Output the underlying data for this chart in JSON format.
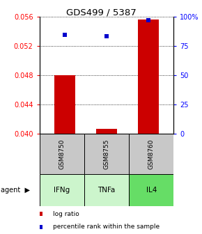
{
  "title": "GDS499 / 5387",
  "samples": [
    "GSM8750",
    "GSM8755",
    "GSM8760"
  ],
  "agents": [
    "IFNg",
    "TNFa",
    "IL4"
  ],
  "log_ratio": [
    0.048,
    0.04065,
    0.05555
  ],
  "percentile": [
    84.0,
    83.0,
    97.0
  ],
  "ylim_left": [
    0.04,
    0.056
  ],
  "ylim_right": [
    0,
    100
  ],
  "yticks_left": [
    0.04,
    0.044,
    0.048,
    0.052,
    0.056
  ],
  "yticks_right": [
    0,
    25,
    50,
    75,
    100
  ],
  "ytick_labels_right": [
    "0",
    "25",
    "50",
    "75",
    "100%"
  ],
  "bar_color": "#cc0000",
  "dot_color": "#0000cc",
  "agent_colors": [
    "#ccf5cc",
    "#ccf5cc",
    "#66dd66"
  ],
  "sample_bg": "#c8c8c8",
  "bar_width": 0.5
}
